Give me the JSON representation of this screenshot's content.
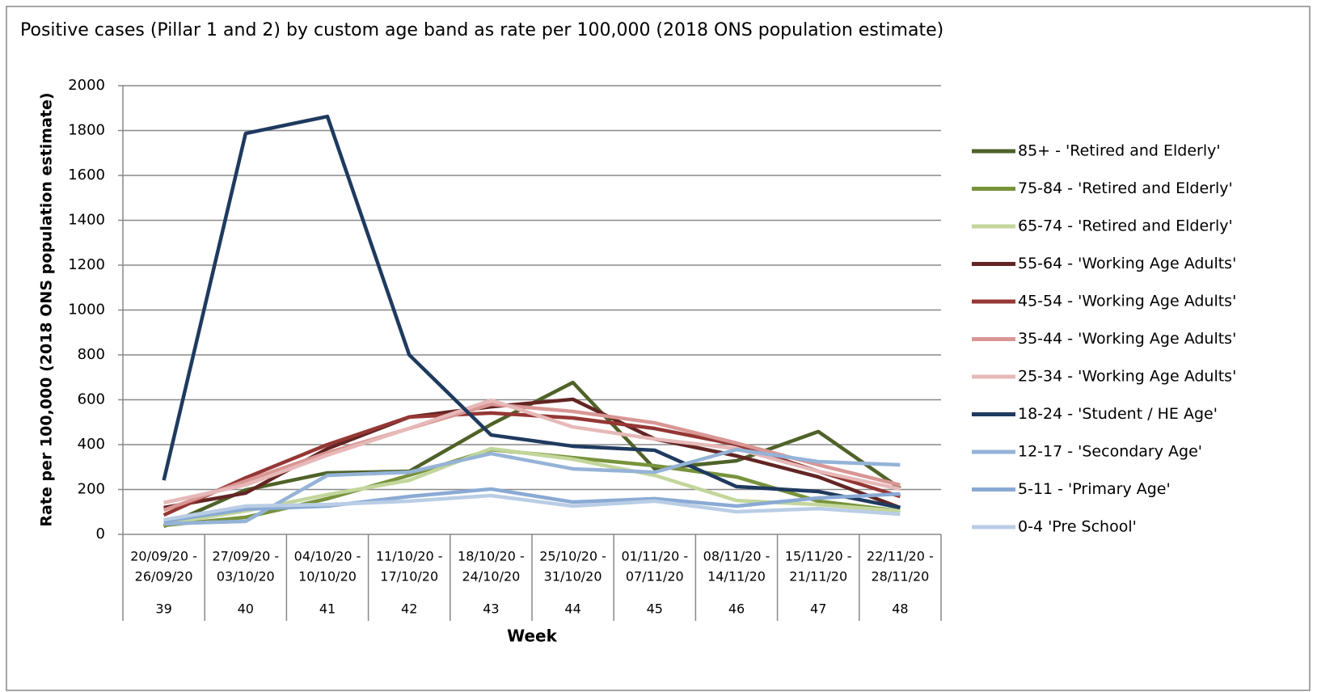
{
  "chart_data": {
    "type": "line",
    "title": "Positive cases (Pillar 1 and 2) by custom age band as rate per 100,000 (2018 ONS population estimate)",
    "y_label": "Rate per 100,000 (2018 ONS population estimate)",
    "x_label": "Week",
    "categories": [
      "39",
      "40",
      "41",
      "42",
      "43",
      "44",
      "45",
      "46",
      "47",
      "48"
    ],
    "period_labels": [
      [
        "20/09/20 -",
        "26/09/20"
      ],
      [
        "27/09/20 -",
        "03/10/20"
      ],
      [
        "04/10/20 -",
        "10/10/20"
      ],
      [
        "11/10/20 -",
        "17/10/20"
      ],
      [
        "18/10/20 -",
        "24/10/20"
      ],
      [
        "25/10/20 -",
        "31/10/20"
      ],
      [
        "01/11/20 -",
        "07/11/20"
      ],
      [
        "08/11/20 -",
        "14/11/20"
      ],
      [
        "15/11/20 -",
        "21/11/20"
      ],
      [
        "22/11/20 -",
        "28/11/20"
      ]
    ],
    "ylim": [
      0,
      2000
    ],
    "yticks": [
      0,
      200,
      400,
      600,
      800,
      1000,
      1200,
      1400,
      1600,
      1800,
      2000
    ],
    "grid": true,
    "legend": "right",
    "series": [
      {
        "name": "85+ - 'Retired and Elderly'",
        "color": "#4f6228",
        "values": [
          36,
          198,
          274,
          281,
          490,
          677,
          292,
          328,
          458,
          205
        ]
      },
      {
        "name": "75-84 - 'Retired and Elderly'",
        "color": "#77933c",
        "values": [
          40,
          76,
          159,
          263,
          378,
          342,
          306,
          256,
          148,
          104
        ]
      },
      {
        "name": "65-74 - 'Retired and Elderly'",
        "color": "#c3d69b",
        "values": [
          47,
          104,
          177,
          241,
          382,
          335,
          263,
          151,
          133,
          104
        ]
      },
      {
        "name": "55-64 - 'Working Age Adults'",
        "color": "#632523",
        "values": [
          119,
          184,
          382,
          523,
          569,
          602,
          425,
          350,
          256,
          119
        ]
      },
      {
        "name": "45-54 - 'Working Age Adults'",
        "color": "#953735",
        "values": [
          86,
          252,
          400,
          523,
          541,
          519,
          472,
          400,
          281,
          169
        ]
      },
      {
        "name": "35-44 - 'Working Age Adults'",
        "color": "#d99694",
        "values": [
          108,
          238,
          364,
          472,
          580,
          548,
          497,
          407,
          310,
          220
        ]
      },
      {
        "name": "25-34 - 'Working Age Adults'",
        "color": "#e6b9b8",
        "values": [
          141,
          220,
          353,
          472,
          598,
          479,
          425,
          382,
          281,
          202
        ]
      },
      {
        "name": "18-24 - 'Student / HE Age'",
        "color": "#1f3a5f",
        "values": [
          241,
          1787,
          1863,
          800,
          443,
          393,
          375,
          213,
          191,
          119
        ]
      },
      {
        "name": "12-17 - 'Secondary Age'",
        "color": "#95b3d7",
        "values": [
          47,
          58,
          263,
          277,
          360,
          292,
          277,
          378,
          324,
          310
        ]
      },
      {
        "name": "5-11 - 'Primary Age'",
        "color": "#8aaad4",
        "values": [
          58,
          112,
          126,
          169,
          202,
          144,
          159,
          126,
          162,
          180
        ]
      },
      {
        "name": "0-4 'Pre School'",
        "color": "#b9cde5",
        "values": [
          65,
          126,
          133,
          148,
          173,
          126,
          148,
          101,
          115,
          90
        ]
      }
    ]
  }
}
